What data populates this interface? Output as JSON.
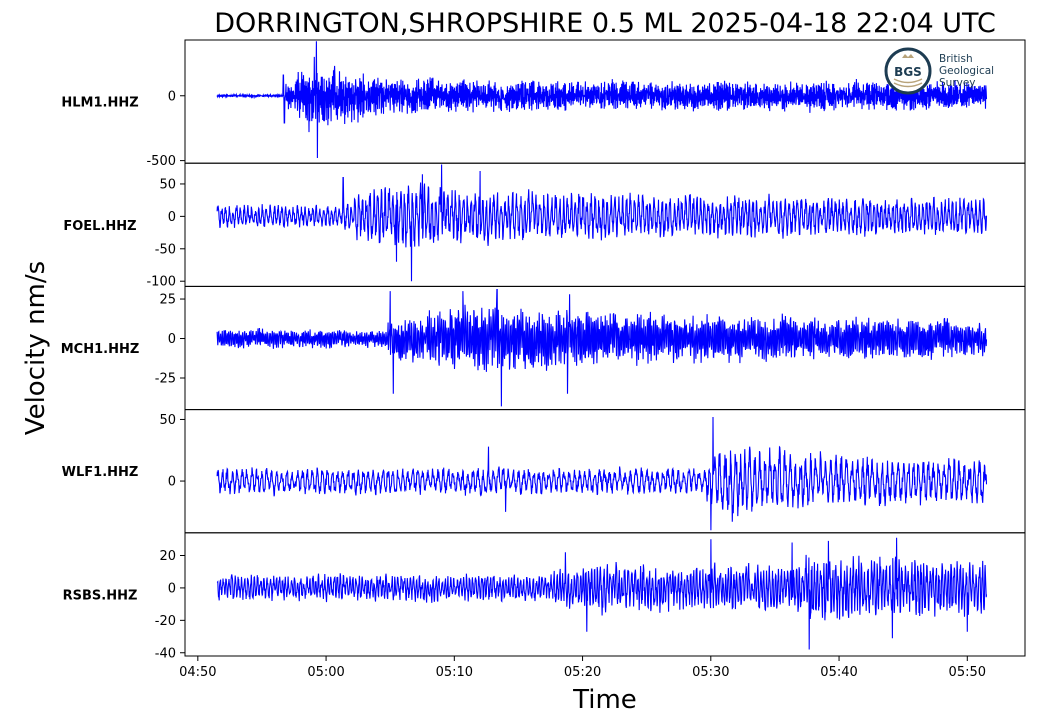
{
  "chart_data": {
    "type": "line",
    "title": "DORRINGTON,SHROPSHIRE 0.5 ML   2025-04-18 22:04 UTC",
    "xlabel": "Time",
    "ylabel": "Velocity nm/s",
    "x_range": [
      "04:51:30",
      "05:51:30"
    ],
    "xlim": [
      "04:49:00",
      "05:54:30"
    ],
    "x_ticks": [
      "04:50",
      "05:00",
      "05:10",
      "05:20",
      "05:30",
      "05:40",
      "05:50"
    ],
    "line_color": "#0000ff",
    "grid": false,
    "logo": {
      "mark": "BGS",
      "lines": [
        "British",
        "Geological",
        "Survey"
      ],
      "color": "#1d3c52",
      "accent": "#b8a37a"
    },
    "series": [
      {
        "name": "HLM1.HHZ",
        "ylim": [
          -520,
          430
        ],
        "yticks": [
          {
            "v": 0,
            "label": "0"
          },
          {
            "v": -500,
            "label": "-500"
          }
        ],
        "noise": 8,
        "period_s": 4,
        "events": [
          {
            "start": "04:56:40",
            "peak": "04:59:00",
            "amp": 210,
            "decay_s": 180
          },
          {
            "start": "05:00:00",
            "peak": "05:01:10",
            "amp": 40,
            "decay_s": 600
          }
        ],
        "spikes": [
          {
            "t": "04:59:15",
            "v": 420
          },
          {
            "t": "04:59:20",
            "v": -480
          },
          {
            "t": "04:59:05",
            "v": 300
          },
          {
            "t": "04:58:40",
            "v": -280
          },
          {
            "t": "05:00:40",
            "v": 230
          },
          {
            "t": "04:56:45",
            "v": -210
          },
          {
            "t": "04:56:40",
            "v": 160
          }
        ]
      },
      {
        "name": "FOEL.HHZ",
        "ylim": [
          -108,
          82
        ],
        "yticks": [
          {
            "v": 50,
            "label": "50"
          },
          {
            "v": 0,
            "label": "0"
          },
          {
            "v": -50,
            "label": "-50"
          },
          {
            "v": -100,
            "label": "-100"
          }
        ],
        "noise": 15,
        "period_s": 18,
        "events": [
          {
            "start": "05:01:20",
            "peak": "05:05:00",
            "amp": 28,
            "decay_s": 720
          }
        ],
        "spikes": [
          {
            "t": "05:01:20",
            "v": 60
          },
          {
            "t": "05:06:40",
            "v": -100
          },
          {
            "t": "05:09:00",
            "v": 80
          },
          {
            "t": "05:12:00",
            "v": 70
          },
          {
            "t": "05:05:30",
            "v": -70
          },
          {
            "t": "05:07:30",
            "v": 65
          }
        ]
      },
      {
        "name": "MCH1.HHZ",
        "ylim": [
          -45,
          33
        ],
        "yticks": [
          {
            "v": 25,
            "label": "25"
          },
          {
            "v": 0,
            "label": "0"
          },
          {
            "v": -25,
            "label": "-25"
          }
        ],
        "noise": 5,
        "period_s": 8,
        "events": [
          {
            "start": "05:04:50",
            "peak": "05:11:00",
            "amp": 14,
            "decay_s": 900
          }
        ],
        "spikes": [
          {
            "t": "05:05:00",
            "v": 30
          },
          {
            "t": "05:05:15",
            "v": -35
          },
          {
            "t": "05:13:40",
            "v": -44
          },
          {
            "t": "05:13:20",
            "v": 32
          },
          {
            "t": "05:18:50",
            "v": -35
          },
          {
            "t": "05:10:40",
            "v": 30
          },
          {
            "t": "05:19:00",
            "v": 28
          }
        ]
      },
      {
        "name": "WLF1.HHZ",
        "ylim": [
          -42,
          58
        ],
        "yticks": [
          {
            "v": 50,
            "label": "50"
          },
          {
            "v": 0,
            "label": "0"
          }
        ],
        "noise": 9,
        "period_s": 24,
        "events": [
          {
            "start": "05:29:40",
            "peak": "05:31:00",
            "amp": 16,
            "decay_s": 500
          }
        ],
        "spikes": [
          {
            "t": "05:30:10",
            "v": 52
          },
          {
            "t": "05:30:00",
            "v": -40
          },
          {
            "t": "05:12:40",
            "v": 28
          },
          {
            "t": "05:14:00",
            "v": -25
          },
          {
            "t": "05:31:40",
            "v": -33
          }
        ]
      },
      {
        "name": "RSBS.HHZ",
        "ylim": [
          -42,
          34
        ],
        "yticks": [
          {
            "v": 20,
            "label": "20"
          },
          {
            "v": 0,
            "label": "0"
          },
          {
            "v": -20,
            "label": "-20"
          },
          {
            "v": -40,
            "label": "-40"
          }
        ],
        "noise": 7,
        "period_s": 14,
        "events": [
          {
            "start": "05:17:40",
            "peak": "05:21:00",
            "amp": 6,
            "decay_s": 1800
          },
          {
            "start": "05:36:30",
            "peak": "05:38:00",
            "amp": 7,
            "decay_s": 500
          }
        ],
        "spikes": [
          {
            "t": "05:30:00",
            "v": 30
          },
          {
            "t": "05:37:40",
            "v": -38
          },
          {
            "t": "05:44:30",
            "v": 31
          },
          {
            "t": "05:44:10",
            "v": -31
          },
          {
            "t": "05:20:20",
            "v": -27
          },
          {
            "t": "05:39:10",
            "v": 29
          },
          {
            "t": "05:50:00",
            "v": -27
          },
          {
            "t": "05:18:40",
            "v": 22
          },
          {
            "t": "05:36:20",
            "v": 28
          }
        ]
      }
    ]
  }
}
